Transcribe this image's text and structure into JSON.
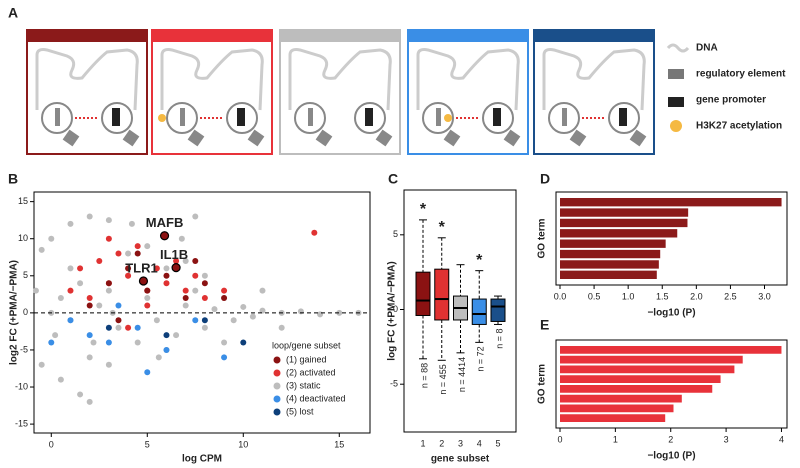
{
  "panel_labels": [
    "A",
    "B",
    "C",
    "D",
    "E"
  ],
  "diagram": {
    "legend": [
      "DNA",
      "regulatory element",
      "gene promoter",
      "H3K27 acetylation"
    ]
  },
  "chart_data": [
    {
      "type": "scatter",
      "xlabel": "log CPM",
      "ylabel": "log2 FC (+PMA/−PMA)",
      "xlim": [
        -0.9,
        16.6
      ],
      "ylim": [
        -16.2,
        16.3
      ],
      "xticks": [
        0,
        5,
        10,
        15
      ],
      "yticks": [
        -15,
        -10,
        -5,
        0,
        5,
        10,
        15
      ],
      "legend_title": "loop/gene subset",
      "legend_position": "lower right",
      "series": [
        {
          "name": "(3) static",
          "color": "#bdbdbd",
          "x": [
            0.2,
            0.5,
            1,
            1.5,
            2,
            2.5,
            3,
            3.5,
            4,
            4.5,
            5,
            5.5,
            6,
            6.5,
            7,
            7.5,
            8,
            8.5,
            9,
            9.5,
            10,
            10.5,
            11,
            12,
            13,
            15,
            16,
            -0.5,
            0,
            1,
            2,
            3,
            -0.5,
            0.5,
            1.5,
            2,
            4,
            5,
            7,
            3,
            6,
            8,
            9,
            11,
            12,
            4.2,
            7.5,
            6.8,
            1,
            2.2,
            5.6,
            3.2,
            0,
            -0.8,
            14
          ],
          "values": [
            -3,
            2,
            -1,
            4,
            -6,
            1,
            3,
            -2,
            5,
            -4,
            2,
            -1,
            6,
            -3,
            1,
            3,
            -2,
            0.5,
            2,
            -1,
            0.8,
            -0.5,
            0.3,
            0,
            0.2,
            0,
            0,
            8.5,
            10,
            12,
            13,
            12.5,
            -7,
            -9,
            -11,
            -12,
            8,
            9,
            7,
            -7,
            -5,
            5,
            -4,
            3,
            -2,
            12,
            13,
            10,
            6,
            -4,
            -6,
            0,
            0,
            3,
            -0.2
          ]
        },
        {
          "name": "(2) activated",
          "color": "#e03232",
          "x": [
            1,
            1.5,
            2,
            2.5,
            3,
            3.5,
            4,
            4.5,
            5,
            5.5,
            6,
            6.5,
            7,
            7.5,
            8,
            3,
            4,
            5,
            13.7,
            9
          ],
          "values": [
            3,
            6,
            2,
            7,
            4,
            8,
            5,
            9,
            3,
            6,
            4,
            7,
            3,
            5,
            2,
            10,
            -2,
            1,
            10.8,
            3
          ]
        },
        {
          "name": "(1) gained",
          "color": "#8b1212",
          "x": [
            2,
            3,
            4,
            5,
            6,
            7,
            8,
            4.5,
            6.5,
            3.5,
            9,
            7.5
          ],
          "values": [
            1,
            4,
            6,
            3,
            5,
            2,
            4,
            8,
            6.1,
            -1,
            2,
            7
          ]
        },
        {
          "name": "(4) deactivated",
          "color": "#3a8ee6",
          "x": [
            1,
            2,
            3,
            4.5,
            5,
            6,
            7.5,
            9,
            3.5,
            0
          ],
          "values": [
            -1,
            -3,
            -4,
            -2,
            -8,
            -5,
            -1,
            -6,
            1,
            -4
          ]
        },
        {
          "name": "(5) lost",
          "color": "#0d3f7a",
          "x": [
            3,
            6,
            8,
            10
          ],
          "values": [
            -2,
            -3,
            -1,
            -4
          ]
        }
      ],
      "annotations": [
        {
          "text": "MAFB",
          "x": 5.9,
          "y": 10.4
        },
        {
          "text": "IL1B",
          "x": 6.5,
          "y": 6.1
        },
        {
          "text": "TLR1",
          "x": 4.8,
          "y": 4.3
        }
      ]
    },
    {
      "type": "box",
      "xlabel": "gene subset",
      "ylabel": "log FC (+PMA/−PMA)",
      "ylim": [
        -8.2,
        8.0
      ],
      "yticks": [
        -5,
        0,
        5
      ],
      "categories": [
        "1",
        "2",
        "3",
        "4",
        "5"
      ],
      "colors": [
        "#8b1212",
        "#e03232",
        "#bdbdbd",
        "#3a8ee6",
        "#1a4f8a"
      ],
      "boxes": [
        {
          "min": -3.3,
          "q1": -0.4,
          "median": 0.6,
          "q3": 2.5,
          "max": 6.0
        },
        {
          "min": -3.4,
          "q1": -0.7,
          "median": 0.7,
          "q3": 2.7,
          "max": 4.8
        },
        {
          "min": -2.9,
          "q1": -0.7,
          "median": 0.1,
          "q3": 0.9,
          "max": 3.0
        },
        {
          "min": -2.2,
          "q1": -1.0,
          "median": -0.3,
          "q3": 0.7,
          "max": 2.6
        },
        {
          "min": -1.0,
          "q1": -0.8,
          "median": 0.2,
          "q3": 0.7,
          "max": 0.9
        }
      ],
      "n_labels": [
        "n = 88",
        "n = 455",
        "n = 4414",
        "n = 72",
        "n = 8"
      ],
      "significance": [
        "*",
        "*",
        null,
        "*",
        null
      ]
    },
    {
      "type": "hbar",
      "ylabel": "GO term",
      "xlabel": "−log10 (P)",
      "color": "#8b1a1a",
      "xlim": [
        0,
        3.33
      ],
      "xticks": [
        {
          "value": 0,
          "label": "0.0"
        },
        {
          "value": 0.5,
          "label": "0.5"
        },
        {
          "value": 1,
          "label": "1.0"
        },
        {
          "value": 1.5,
          "label": "1.5"
        },
        {
          "value": 2,
          "label": "2.0"
        },
        {
          "value": 2.5,
          "label": "2.5"
        },
        {
          "value": 3,
          "label": "3.0"
        }
      ],
      "categories": [
        null,
        null,
        null,
        null,
        null,
        null,
        null,
        null
      ],
      "values": [
        3.25,
        1.88,
        1.87,
        1.72,
        1.55,
        1.47,
        1.45,
        1.42
      ]
    },
    {
      "type": "hbar",
      "ylabel": "GO term",
      "xlabel": "−log10 (P)",
      "color": "#e8323a",
      "xlim": [
        0,
        4.1
      ],
      "xticks": [
        0,
        1,
        2,
        3,
        4
      ],
      "categories": [
        null,
        null,
        null,
        null,
        null,
        null,
        null,
        null
      ],
      "values": [
        4.0,
        3.3,
        3.15,
        2.9,
        2.75,
        2.2,
        2.05,
        1.9
      ]
    }
  ]
}
